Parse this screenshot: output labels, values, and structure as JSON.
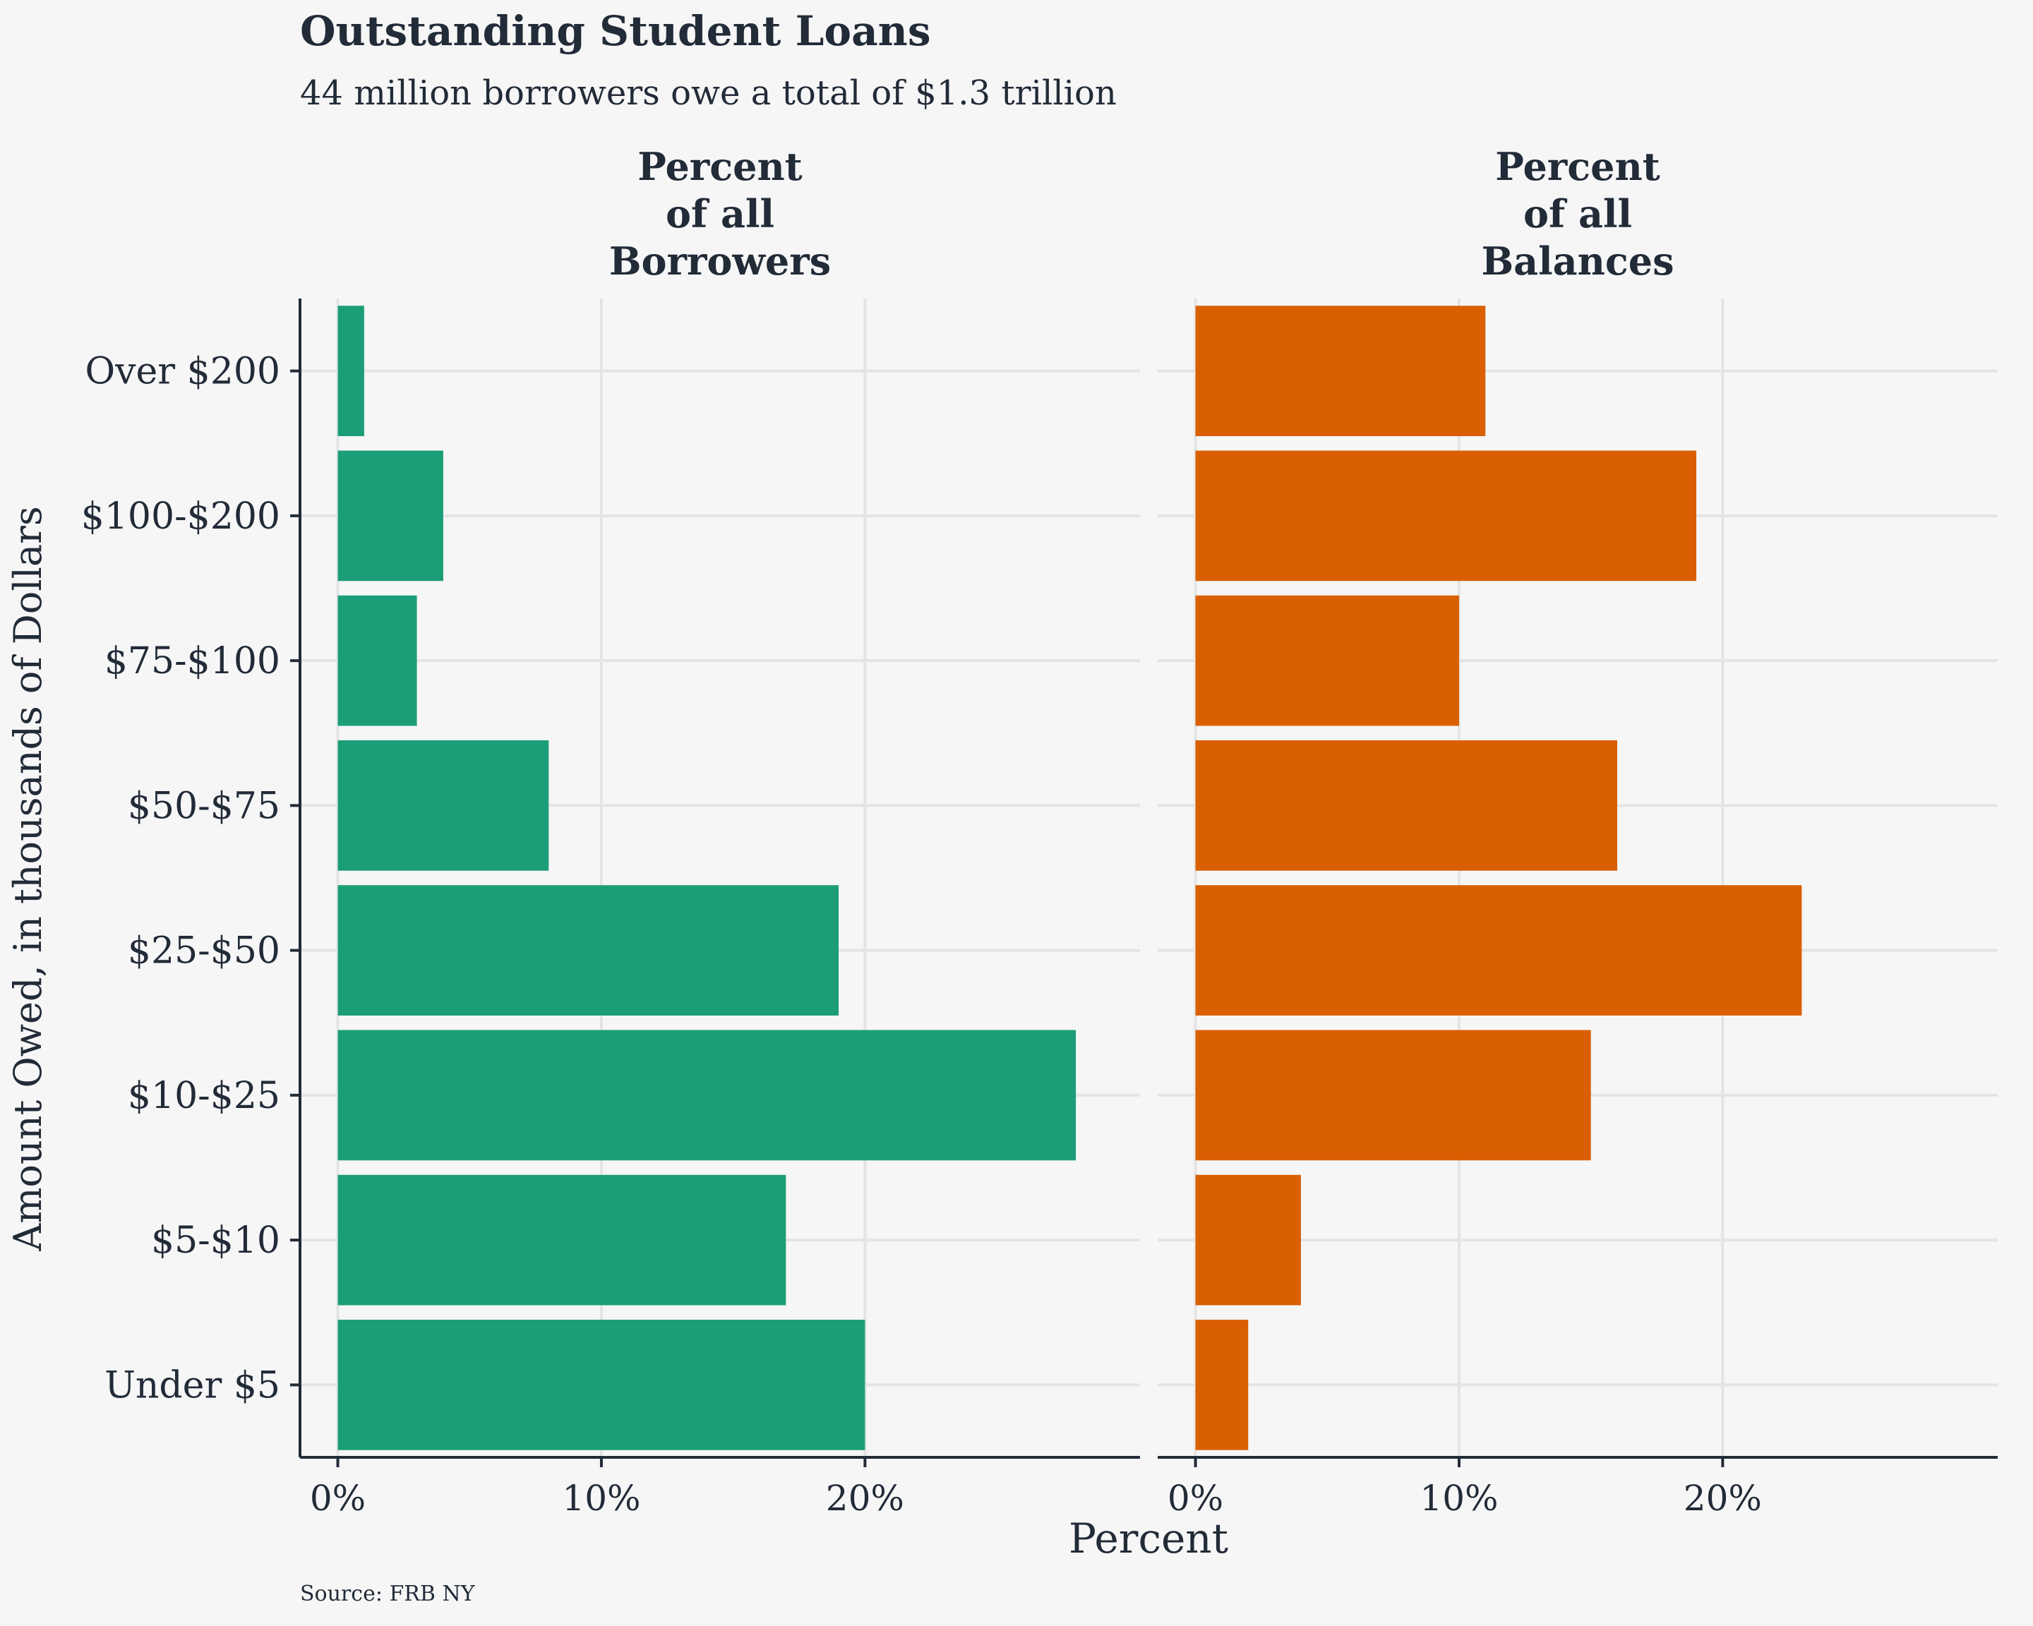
{
  "chart_data": {
    "type": "bar",
    "title": "Outstanding Student Loans",
    "subtitle": "44 million borrowers owe a total of $1.3 trillion",
    "xlabel": "Percent",
    "ylabel": "Amount Owed, in thousands of Dollars",
    "source": "Source: FRB NY",
    "orientation": "horizontal",
    "grid": true,
    "xlim": [
      0,
      29
    ],
    "xticks": [
      0,
      10,
      20
    ],
    "xtick_labels": [
      "0%",
      "10%",
      "20%"
    ],
    "categories": [
      "Over $200",
      "$100-$200",
      "$75-$100",
      "$50-$75",
      "$25-$50",
      "$10-$25",
      "$5-$10",
      "Under $5"
    ],
    "panels": [
      {
        "title_lines": [
          "Percent",
          "of all",
          "Borrowers"
        ],
        "color": "#1b9e77",
        "values": [
          1,
          4,
          3,
          8,
          19,
          28,
          17,
          20
        ]
      },
      {
        "title_lines": [
          "Percent",
          "of all",
          "Balances"
        ],
        "color": "#d95f02",
        "values": [
          11,
          19,
          10,
          16,
          23,
          15,
          4,
          2
        ]
      }
    ]
  }
}
